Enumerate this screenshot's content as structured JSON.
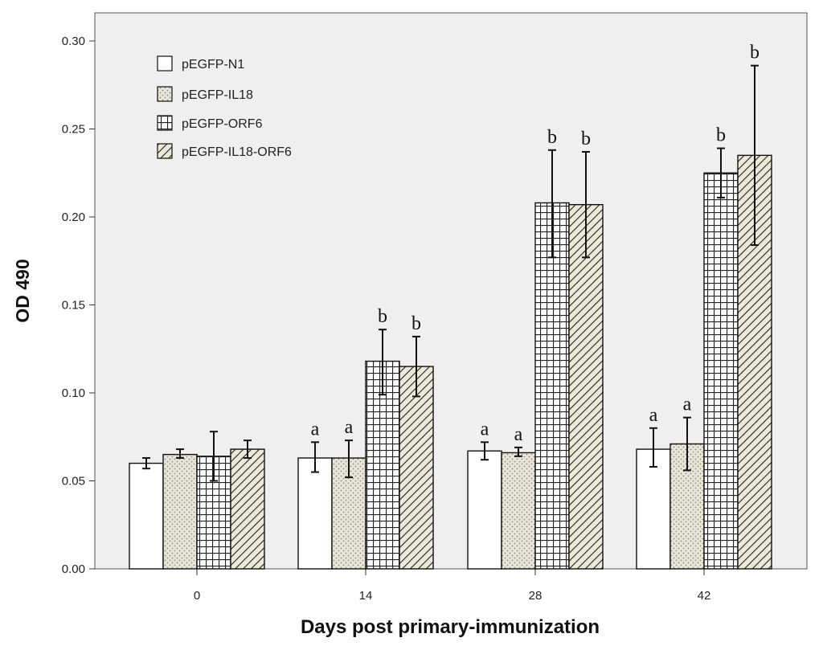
{
  "chart_data": {
    "type": "bar",
    "title": "",
    "xlabel": "Days post primary-immunization",
    "ylabel": "OD 490",
    "ylim": [
      0,
      0.3
    ],
    "yticks": [
      "0.00",
      "0.05",
      "0.10",
      "0.15",
      "0.20",
      "0.25",
      "0.30"
    ],
    "categories": [
      "0",
      "14",
      "28",
      "42"
    ],
    "legend_position": "top-left",
    "background": "#efefef",
    "series": [
      {
        "name": "pEGFP-N1",
        "pattern": "plain",
        "values": [
          0.06,
          0.063,
          0.067,
          0.068
        ],
        "err_low": [
          0.057,
          0.055,
          0.062,
          0.058
        ],
        "err_high": [
          0.063,
          0.072,
          0.072,
          0.08
        ],
        "labels": [
          "",
          "a",
          "a",
          "a"
        ]
      },
      {
        "name": "pEGFP-IL18",
        "pattern": "dots",
        "values": [
          0.065,
          0.063,
          0.066,
          0.071
        ],
        "err_low": [
          0.063,
          0.052,
          0.064,
          0.056
        ],
        "err_high": [
          0.068,
          0.073,
          0.069,
          0.086
        ],
        "labels": [
          "",
          "a",
          "a",
          "a"
        ]
      },
      {
        "name": "pEGFP-ORF6",
        "pattern": "grid",
        "values": [
          0.064,
          0.118,
          0.208,
          0.225
        ],
        "err_low": [
          0.05,
          0.099,
          0.177,
          0.211
        ],
        "err_high": [
          0.078,
          0.136,
          0.238,
          0.239
        ],
        "labels": [
          "",
          "b",
          "b",
          "b"
        ]
      },
      {
        "name": "pEGFP-IL18-ORF6",
        "pattern": "diagonal",
        "values": [
          0.068,
          0.115,
          0.207,
          0.235
        ],
        "err_low": [
          0.063,
          0.098,
          0.177,
          0.184
        ],
        "err_high": [
          0.073,
          0.132,
          0.237,
          0.286
        ],
        "labels": [
          "",
          "b",
          "b",
          "b"
        ]
      }
    ]
  }
}
